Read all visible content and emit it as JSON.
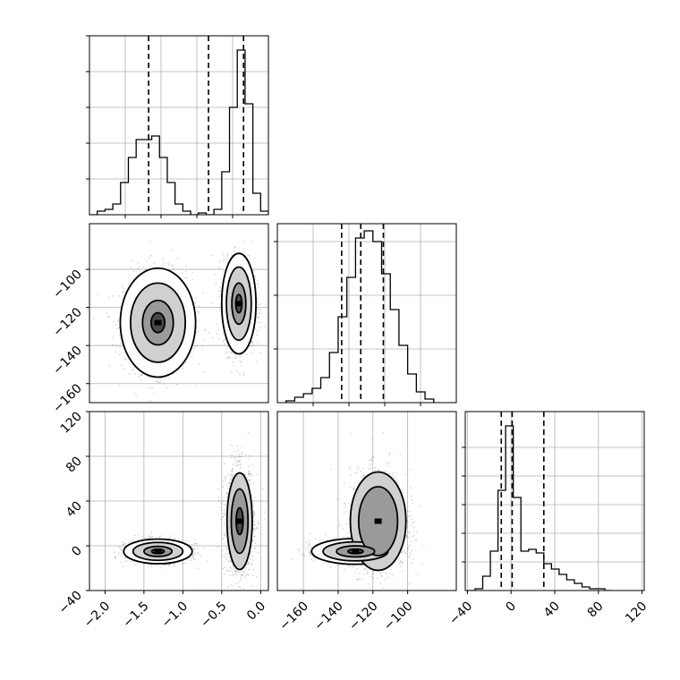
{
  "figure": {
    "background": "#ffffff",
    "grid_color": "#b0b0b0",
    "line_color": "#000000",
    "fill_colors": [
      "#ffffff",
      "#d0d0d0",
      "#9a9a9a",
      "#4a4a4a",
      "#000000"
    ]
  },
  "chart_data": [
    {
      "type": "histogram",
      "panel": "param-0-histogram",
      "grid": true,
      "xlim": [
        -2.2,
        0.1
      ],
      "ylim": [
        0,
        1
      ],
      "ytick_values": [
        0.2,
        0.4,
        0.6,
        0.8,
        1.0
      ],
      "bin_edges": [
        -2.2,
        -2.1,
        -2.0,
        -1.9,
        -1.8,
        -1.7,
        -1.6,
        -1.5,
        -1.4,
        -1.3,
        -1.2,
        -1.1,
        -1.0,
        -0.9,
        -0.8,
        -0.7,
        -0.6,
        -0.5,
        -0.4,
        -0.3,
        -0.2,
        -0.1,
        0.0,
        0.1
      ],
      "counts": [
        0.0,
        0.02,
        0.03,
        0.06,
        0.18,
        0.32,
        0.42,
        0.42,
        0.44,
        0.32,
        0.18,
        0.06,
        0.02,
        0.0,
        0.01,
        0.0,
        0.03,
        0.24,
        0.6,
        0.92,
        0.62,
        0.12,
        0.02
      ],
      "quantile_lines": [
        -1.44,
        -0.67,
        -0.22
      ]
    },
    {
      "type": "scatter",
      "panel": "param-0-vs-param-1",
      "grid": true,
      "xlim": [
        -2.2,
        0.1
      ],
      "ylim": [
        -170,
        -76
      ],
      "ytick_labels": [
        "−100",
        "−120",
        "−140",
        "−160"
      ],
      "ytick_values": [
        -100,
        -120,
        -140,
        -160
      ],
      "density_modes": [
        {
          "x": -1.32,
          "y": -128,
          "sx": 0.22,
          "sy": 13
        },
        {
          "x": -0.28,
          "y": -118,
          "sx": 0.1,
          "sy": 12
        }
      ],
      "contour_levels": [
        {
          "mode": 0,
          "radius": 0.4
        },
        {
          "mode": 0,
          "radius": 0.9
        },
        {
          "mode": 0,
          "radius": 1.6
        },
        {
          "mode": 0,
          "radius": 2.2
        },
        {
          "mode": 1,
          "radius": 0.4
        },
        {
          "mode": 1,
          "radius": 0.9
        },
        {
          "mode": 1,
          "radius": 1.6
        },
        {
          "mode": 1,
          "radius": 2.2
        }
      ]
    },
    {
      "type": "histogram",
      "panel": "param-1-histogram",
      "grid": true,
      "xlim": [
        -175,
        -72
      ],
      "ylim": [
        0,
        1
      ],
      "ytick_values": [
        0.3,
        0.6,
        0.9
      ],
      "bin_edges": [
        -170,
        -165,
        -160,
        -155,
        -150,
        -145,
        -140,
        -135,
        -130,
        -125,
        -120,
        -115,
        -110,
        -105,
        -100,
        -95,
        -90,
        -85
      ],
      "counts": [
        0.01,
        0.03,
        0.05,
        0.08,
        0.14,
        0.28,
        0.48,
        0.7,
        0.92,
        0.96,
        0.9,
        0.72,
        0.52,
        0.32,
        0.16,
        0.06,
        0.02
      ],
      "quantile_lines": [
        -138,
        -127,
        -114
      ]
    },
    {
      "type": "scatter",
      "panel": "param-0-vs-param-2",
      "grid": true,
      "xlim": [
        -2.2,
        0.1
      ],
      "ylim": [
        -40,
        120
      ],
      "ytick_labels": [
        "120",
        "80",
        "40",
        "0",
        "−40"
      ],
      "ytick_values": [
        120,
        80,
        40,
        0,
        -40
      ],
      "xtick_labels": [
        "−2.0",
        "−1.5",
        "−1.0",
        "−0.5",
        "0.0"
      ],
      "xtick_values": [
        -2.0,
        -1.5,
        -1.0,
        -0.5,
        0.0
      ],
      "density_modes": [
        {
          "x": -1.32,
          "y": -5,
          "sx": 0.2,
          "sy": 5
        },
        {
          "x": -0.27,
          "y": 22,
          "sx": 0.09,
          "sy": 24
        }
      ],
      "contour_levels": [
        {
          "mode": 0,
          "radius": 0.4
        },
        {
          "mode": 0,
          "radius": 0.9
        },
        {
          "mode": 0,
          "radius": 1.6
        },
        {
          "mode": 0,
          "radius": 2.2
        },
        {
          "mode": 1,
          "radius": 0.5
        },
        {
          "mode": 1,
          "radius": 1.2
        },
        {
          "mode": 1,
          "radius": 1.8
        }
      ]
    },
    {
      "type": "scatter",
      "panel": "param-1-vs-param-2",
      "grid": true,
      "xlim": [
        -175,
        -72
      ],
      "ylim": [
        -40,
        120
      ],
      "xtick_labels": [
        "−160",
        "−140",
        "−120",
        "−100"
      ],
      "xtick_values": [
        -160,
        -140,
        -120,
        -100
      ],
      "density_modes": [
        {
          "x": -130,
          "y": -5,
          "sx": 11,
          "sy": 5
        },
        {
          "x": -117,
          "y": 22,
          "sx": 8,
          "sy": 22
        }
      ],
      "contour_levels": [
        {
          "mode": 0,
          "radius": 0.4
        },
        {
          "mode": 0,
          "radius": 1.0
        },
        {
          "mode": 0,
          "radius": 1.7
        },
        {
          "mode": 0,
          "radius": 2.3
        },
        {
          "mode": 1,
          "radius": 1.4
        },
        {
          "mode": 1,
          "radius": 2.0
        }
      ]
    },
    {
      "type": "histogram",
      "panel": "param-2-histogram",
      "grid": true,
      "xlim": [
        -42,
        122
      ],
      "ylim": [
        0,
        1
      ],
      "xtick_labels": [
        "−40",
        "0",
        "40",
        "80",
        "120"
      ],
      "xtick_values": [
        -40,
        0,
        40,
        80,
        120
      ],
      "ytick_values": [
        0.16,
        0.32,
        0.48,
        0.64,
        0.8
      ],
      "bin_edges": [
        -40,
        -33,
        -26,
        -19,
        -12,
        -5,
        2,
        9,
        16,
        23,
        30,
        37,
        44,
        51,
        58,
        65,
        72,
        79,
        86,
        93
      ],
      "counts": [
        0.0,
        0.01,
        0.08,
        0.22,
        0.56,
        0.92,
        0.52,
        0.22,
        0.23,
        0.21,
        0.15,
        0.12,
        0.09,
        0.06,
        0.04,
        0.02,
        0.01,
        0.01,
        0.0
      ],
      "quantile_lines": [
        -9,
        1,
        30
      ]
    }
  ]
}
